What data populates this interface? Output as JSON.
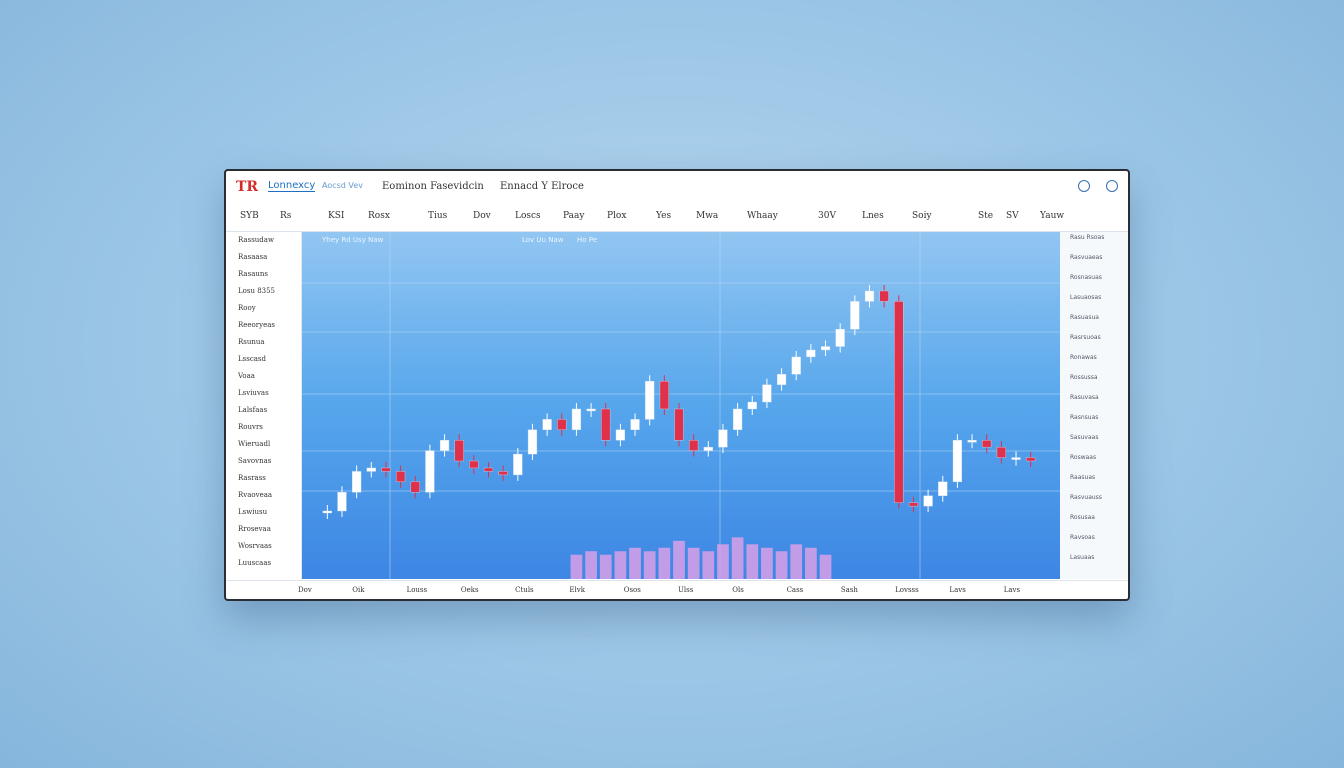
{
  "header": {
    "logo": "TR",
    "brand": "Lonnexcy",
    "brand_sub": "Aocsd Vev",
    "menu": [
      "Eominon Fasevidcin",
      "Ennacd Y Elroce"
    ]
  },
  "toolbar": [
    "SYB",
    "Rs",
    "KSI",
    "Rosx",
    "Tius",
    "Dov",
    "Loscs",
    "Paay",
    "Plox",
    "Yes",
    "Mwa",
    "Whaay",
    "30V",
    "Lnes",
    "Soiy",
    "Ste",
    "SV",
    "Yauw"
  ],
  "sidebar": [
    "Rassudaw",
    "Rasaasa",
    "Rasauns",
    "Losu 8355",
    "Rooy",
    "Reeoryeas",
    "Rsunua",
    "Lsscasd",
    "Voaa",
    "Lsviuvas",
    "Lalsfaas",
    "Rouvrs",
    "Wieruadl",
    "Savovnas",
    "Rasrass",
    "Rvaoveaa",
    "Lswiusu",
    "Rrosevaa",
    "Wosrvaas",
    "Luuscaas"
  ],
  "right_panel": [
    "Rasu Rsoas",
    "Rasvuaeas",
    "Rosnasuas",
    "Lasuaosas",
    "Rasuasua",
    "Rasrsuoas",
    "Ronawas",
    "Rossussa",
    "Rasuvasa",
    "Rasnsuas",
    "Sasuvaas",
    "Roswaas",
    "Raasuas",
    "Rasvuauss",
    "Rosusaa",
    "Ravsoas",
    "Lasuaas"
  ],
  "x_labels": [
    "Dov",
    "Oik",
    "Louss",
    "Oeks",
    "Ctuls",
    "Elvk",
    "Osos",
    "Ulss",
    "Ols",
    "Cass",
    "Sash",
    "Lovsss",
    "Lavs",
    "Lavs"
  ],
  "chart_data": {
    "type": "candlestick",
    "labels": [
      "Yhey Rd Usy Naw",
      "Lov Uu Naw",
      "Ho Pe"
    ],
    "ylim": [
      0,
      100
    ],
    "up_color": "#ffffff",
    "down_color": "#e0304a",
    "close": [
      19.6,
      25,
      31,
      32,
      31,
      28,
      25,
      37,
      40,
      34,
      32,
      31,
      30,
      36,
      43,
      46,
      43,
      49,
      49,
      40,
      43,
      46,
      57,
      49,
      40,
      37,
      38,
      43,
      49,
      51,
      56,
      59,
      64,
      66,
      67,
      72,
      80,
      83,
      80,
      22,
      21,
      24,
      28,
      40,
      40,
      38,
      35,
      35,
      34
    ],
    "volume_color": "#d9a0e8",
    "volume": [
      null,
      null,
      null,
      null,
      null,
      null,
      null,
      null,
      null,
      null,
      null,
      null,
      null,
      null,
      null,
      null,
      null,
      7,
      8,
      7,
      8,
      9,
      8,
      9,
      11,
      9,
      8,
      10,
      12,
      10,
      9,
      8,
      10,
      9,
      7,
      null,
      null,
      null,
      null,
      null,
      null,
      null,
      null,
      null,
      null,
      null,
      null,
      null,
      null
    ]
  }
}
